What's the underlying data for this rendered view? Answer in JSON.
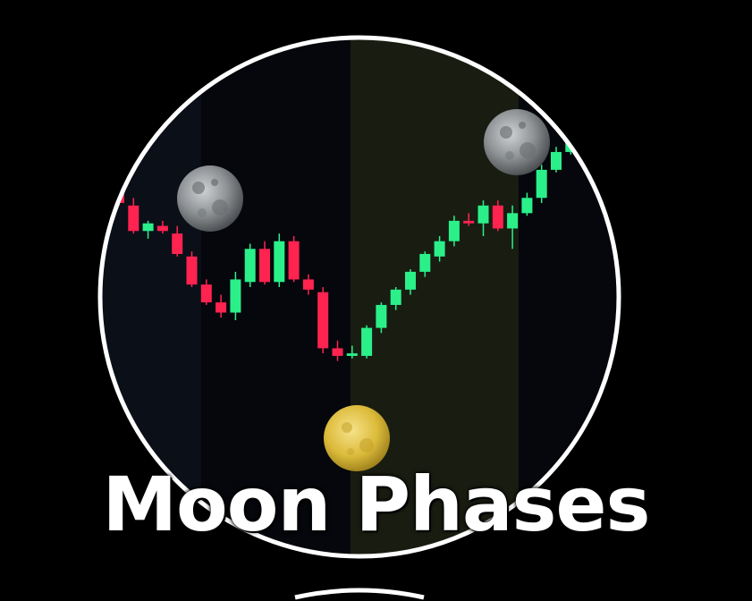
{
  "caption": {
    "text": "Moon Phases"
  },
  "colors": {
    "bullish": "#2bf08a",
    "bearish": "#ff2350",
    "ring": "#ffffff",
    "highlight_zone": "#191d11",
    "full_moon": "#e0c23c",
    "background": "#000000"
  },
  "icons": {
    "new_moon_left": "grey-moon-icon",
    "full_moon_bottom": "full-moon-icon",
    "new_moon_right": "grey-moon-icon"
  },
  "chart_data": {
    "type": "candlestick",
    "title": "",
    "xlabel": "",
    "ylabel": "",
    "grid": false,
    "legend": "none",
    "ylim": [
      0,
      100
    ],
    "candles": [
      {
        "o": 79,
        "h": 82,
        "l": 72,
        "c": 73
      },
      {
        "o": 72,
        "h": 75,
        "l": 61,
        "c": 62
      },
      {
        "o": 62,
        "h": 66,
        "l": 59,
        "c": 65
      },
      {
        "o": 64,
        "h": 66,
        "l": 61,
        "c": 62
      },
      {
        "o": 61,
        "h": 64,
        "l": 52,
        "c": 53
      },
      {
        "o": 52,
        "h": 54,
        "l": 40,
        "c": 41
      },
      {
        "o": 41,
        "h": 43,
        "l": 33,
        "c": 34
      },
      {
        "o": 34,
        "h": 37,
        "l": 28,
        "c": 30
      },
      {
        "o": 30,
        "h": 46,
        "l": 27,
        "c": 43
      },
      {
        "o": 42,
        "h": 57,
        "l": 40,
        "c": 55
      },
      {
        "o": 55,
        "h": 58,
        "l": 41,
        "c": 42
      },
      {
        "o": 42,
        "h": 61,
        "l": 40,
        "c": 58
      },
      {
        "o": 58,
        "h": 60,
        "l": 42,
        "c": 43
      },
      {
        "o": 43,
        "h": 45,
        "l": 37,
        "c": 39
      },
      {
        "o": 38,
        "h": 40,
        "l": 14,
        "c": 16
      },
      {
        "o": 16,
        "h": 19,
        "l": 11,
        "c": 13
      },
      {
        "o": 13,
        "h": 17,
        "l": 12,
        "c": 14
      },
      {
        "o": 13,
        "h": 25,
        "l": 12,
        "c": 24
      },
      {
        "o": 24,
        "h": 34,
        "l": 22,
        "c": 33
      },
      {
        "o": 33,
        "h": 40,
        "l": 31,
        "c": 39
      },
      {
        "o": 39,
        "h": 47,
        "l": 37,
        "c": 46
      },
      {
        "o": 46,
        "h": 54,
        "l": 44,
        "c": 53
      },
      {
        "o": 52,
        "h": 60,
        "l": 50,
        "c": 58
      },
      {
        "o": 58,
        "h": 68,
        "l": 56,
        "c": 66
      },
      {
        "o": 66,
        "h": 69,
        "l": 64,
        "c": 65
      },
      {
        "o": 65,
        "h": 74,
        "l": 60,
        "c": 72
      },
      {
        "o": 72,
        "h": 74,
        "l": 62,
        "c": 63
      },
      {
        "o": 63,
        "h": 72,
        "l": 55,
        "c": 69
      },
      {
        "o": 69,
        "h": 77,
        "l": 68,
        "c": 75
      },
      {
        "o": 75,
        "h": 88,
        "l": 73,
        "c": 86
      },
      {
        "o": 86,
        "h": 95,
        "l": 85,
        "c": 93
      },
      {
        "o": 93,
        "h": 99,
        "l": 92,
        "c": 97
      }
    ]
  }
}
